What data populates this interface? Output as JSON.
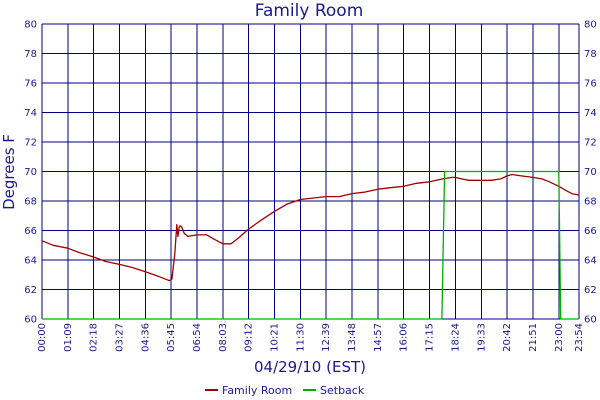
{
  "chart_data": {
    "type": "line",
    "title": "Family Room",
    "xlabel": "04/29/10 (EST)",
    "ylabel": "Degrees F",
    "ylim": [
      60,
      80
    ],
    "yticks": [
      60,
      62,
      64,
      66,
      68,
      70,
      72,
      74,
      76,
      78,
      80
    ],
    "x_unit": "time of day (HH:MM)",
    "xlim": [
      "00:00",
      "23:54"
    ],
    "xticks": [
      "00:00",
      "01:09",
      "02:18",
      "03:27",
      "04:36",
      "05:45",
      "06:54",
      "08:03",
      "09:12",
      "10:21",
      "11:30",
      "12:39",
      "13:48",
      "14:57",
      "16:06",
      "17:15",
      "18:24",
      "19:33",
      "20:42",
      "21:51",
      "23:00",
      "23:54"
    ],
    "grid": true,
    "legend_position": "bottom",
    "series": [
      {
        "name": "Family Room",
        "color": "#a00000",
        "points": [
          [
            "00:00",
            65.3
          ],
          [
            "00:30",
            65.0
          ],
          [
            "01:09",
            64.8
          ],
          [
            "01:40",
            64.5
          ],
          [
            "02:18",
            64.2
          ],
          [
            "02:50",
            63.9
          ],
          [
            "03:27",
            63.7
          ],
          [
            "04:00",
            63.5
          ],
          [
            "04:36",
            63.2
          ],
          [
            "05:10",
            62.9
          ],
          [
            "05:30",
            62.7
          ],
          [
            "05:40",
            62.6
          ],
          [
            "05:47",
            62.7
          ],
          [
            "05:55",
            64.5
          ],
          [
            "06:00",
            66.4
          ],
          [
            "06:03",
            65.6
          ],
          [
            "06:07",
            66.3
          ],
          [
            "06:12",
            66.3
          ],
          [
            "06:20",
            65.8
          ],
          [
            "06:30",
            65.6
          ],
          [
            "06:54",
            65.7
          ],
          [
            "07:20",
            65.7
          ],
          [
            "07:40",
            65.4
          ],
          [
            "08:03",
            65.1
          ],
          [
            "08:25",
            65.1
          ],
          [
            "08:45",
            65.5
          ],
          [
            "09:12",
            66.1
          ],
          [
            "09:45",
            66.7
          ],
          [
            "10:21",
            67.3
          ],
          [
            "10:55",
            67.8
          ],
          [
            "11:30",
            68.1
          ],
          [
            "12:05",
            68.2
          ],
          [
            "12:39",
            68.3
          ],
          [
            "13:14",
            68.3
          ],
          [
            "13:48",
            68.5
          ],
          [
            "14:20",
            68.6
          ],
          [
            "14:57",
            68.8
          ],
          [
            "15:30",
            68.9
          ],
          [
            "16:06",
            69.0
          ],
          [
            "16:40",
            69.2
          ],
          [
            "17:15",
            69.3
          ],
          [
            "17:50",
            69.5
          ],
          [
            "18:15",
            69.6
          ],
          [
            "18:24",
            69.6
          ],
          [
            "18:40",
            69.5
          ],
          [
            "19:00",
            69.4
          ],
          [
            "19:33",
            69.4
          ],
          [
            "20:00",
            69.4
          ],
          [
            "20:25",
            69.5
          ],
          [
            "20:42",
            69.7
          ],
          [
            "20:55",
            69.8
          ],
          [
            "21:20",
            69.7
          ],
          [
            "21:51",
            69.6
          ],
          [
            "22:15",
            69.5
          ],
          [
            "22:35",
            69.3
          ],
          [
            "23:00",
            69.0
          ],
          [
            "23:20",
            68.7
          ],
          [
            "23:35",
            68.5
          ],
          [
            "23:54",
            68.4
          ]
        ]
      },
      {
        "name": "Setback",
        "color": "#00b000",
        "points": [
          [
            "00:00",
            60
          ],
          [
            "17:48",
            60
          ],
          [
            "17:55",
            70
          ],
          [
            "23:00",
            70
          ],
          [
            "23:05",
            60
          ],
          [
            "23:54",
            60
          ]
        ]
      }
    ]
  }
}
